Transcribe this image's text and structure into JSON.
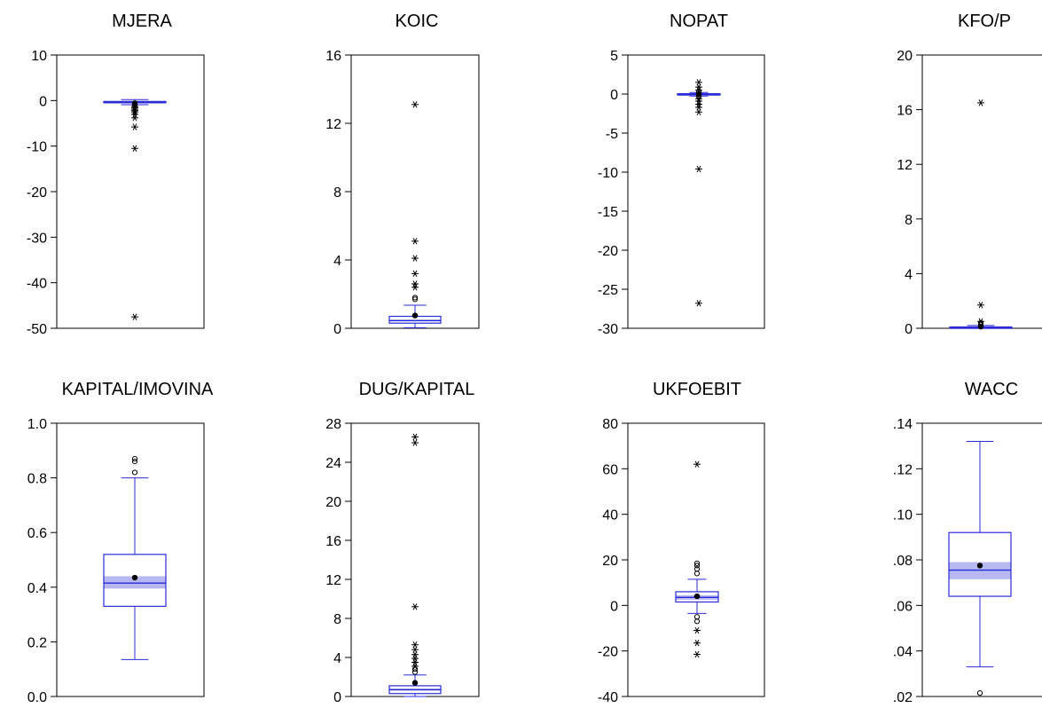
{
  "colors": {
    "box": "#2a2ad6",
    "ci_band": "#b8b8f0",
    "mean": "#000000",
    "frame": "#000000"
  },
  "chart_data": [
    {
      "type": "boxplot",
      "title": "MJERA",
      "ylim": [
        -50,
        10
      ],
      "yticks": [
        10,
        0,
        -10,
        -20,
        -30,
        -40,
        -50
      ],
      "ytick_labels": [
        "10",
        "0",
        "-10",
        "-20",
        "-30",
        "-40",
        "-50"
      ],
      "whisker_low": -0.9,
      "q1": -0.45,
      "median": -0.3,
      "q3": -0.2,
      "whisker_high": 0.2,
      "mean": -0.6,
      "ci": [
        -0.45,
        -0.15
      ],
      "near_outliers": [
        -0.9,
        -1.1
      ],
      "far_outliers": [
        -1.3,
        -1.6,
        -1.9,
        -2.2,
        -2.5,
        -3.0,
        -3.8,
        -5.8,
        -10.5,
        -47.5
      ]
    },
    {
      "type": "boxplot",
      "title": "KOIC",
      "ylim": [
        0,
        16
      ],
      "yticks": [
        16,
        12,
        8,
        4,
        0
      ],
      "ytick_labels": [
        "16",
        "12",
        "8",
        "4",
        "0"
      ],
      "whisker_low": 0.03,
      "q1": 0.3,
      "median": 0.45,
      "q3": 0.7,
      "whisker_high": 1.35,
      "mean": 0.75,
      "ci": [
        0.4,
        0.5
      ],
      "near_outliers": [
        1.7,
        1.8
      ],
      "far_outliers": [
        2.4,
        2.6,
        3.2,
        4.1,
        5.1,
        13.1
      ]
    },
    {
      "type": "boxplot",
      "title": "NOPAT",
      "ylim": [
        -30,
        5
      ],
      "yticks": [
        5,
        0,
        -5,
        -10,
        -15,
        -20,
        -25,
        -30
      ],
      "ytick_labels": [
        "5",
        "0",
        "-5",
        "-10",
        "-15",
        "-20",
        "-25",
        "-30"
      ],
      "whisker_low": -0.25,
      "q1": -0.08,
      "median": -0.02,
      "q3": 0.05,
      "whisker_high": 0.2,
      "mean": 0.0,
      "ci": [
        -0.05,
        0.02
      ],
      "near_outliers": [
        0.25,
        -0.3
      ],
      "far_outliers": [
        1.5,
        0.9,
        0.5,
        -0.6,
        -0.9,
        -1.3,
        -1.7,
        -2.3,
        -9.6,
        -26.8
      ]
    },
    {
      "type": "boxplot",
      "title": "KFO/P",
      "ylim": [
        0,
        20
      ],
      "yticks": [
        20,
        16,
        12,
        8,
        4,
        0
      ],
      "ytick_labels": [
        "20",
        "16",
        "12",
        "8",
        "4",
        "0"
      ],
      "whisker_low": 0.0,
      "q1": 0.02,
      "median": 0.05,
      "q3": 0.1,
      "whisker_high": 0.2,
      "mean": 0.12,
      "ci": [
        0.04,
        0.06
      ],
      "near_outliers": [
        0.3,
        0.4
      ],
      "far_outliers": [
        0.5,
        1.7,
        16.5
      ]
    },
    {
      "type": "boxplot",
      "title": "KAPITAL/IMOVINA",
      "ylim": [
        0,
        1
      ],
      "yticks": [
        1,
        0.8,
        0.6,
        0.4,
        0.2,
        0
      ],
      "ytick_labels": [
        "1.0",
        "0.8",
        "0.6",
        "0.4",
        "0.2",
        "0.0"
      ],
      "whisker_low": 0.135,
      "q1": 0.33,
      "median": 0.415,
      "q3": 0.52,
      "whisker_high": 0.8,
      "mean": 0.435,
      "ci": [
        0.395,
        0.44
      ],
      "near_outliers": [
        0.82,
        0.86,
        0.87
      ],
      "far_outliers": []
    },
    {
      "type": "boxplot",
      "title": "DUG/KAPITAL",
      "ylim": [
        0,
        28
      ],
      "yticks": [
        28,
        24,
        20,
        16,
        12,
        8,
        4,
        0
      ],
      "ytick_labels": [
        "28",
        "24",
        "20",
        "16",
        "12",
        "8",
        "4",
        "0"
      ],
      "whisker_low": 0.0,
      "q1": 0.3,
      "median": 0.7,
      "q3": 1.1,
      "whisker_high": 2.2,
      "mean": 1.4,
      "ci": [
        0.6,
        0.8
      ],
      "near_outliers": [
        2.5,
        2.8
      ],
      "far_outliers": [
        3.1,
        3.5,
        3.9,
        4.3,
        4.8,
        5.3,
        9.2,
        26.0,
        26.6
      ]
    },
    {
      "type": "boxplot",
      "title": "UKFOEBIT",
      "ylim": [
        -40,
        80
      ],
      "yticks": [
        80,
        60,
        40,
        20,
        0,
        -20,
        -40
      ],
      "ytick_labels": [
        "80",
        "60",
        "40",
        "20",
        "0",
        "-20",
        "-40"
      ],
      "whisker_low": -3.5,
      "q1": 1.5,
      "median": 3.5,
      "q3": 6.0,
      "whisker_high": 11.5,
      "mean": 4.0,
      "ci": [
        2.5,
        4.5
      ],
      "near_outliers": [
        14.0,
        16.0,
        17.5,
        18.5,
        -5.0,
        -7.0
      ],
      "far_outliers": [
        -11.0,
        -16.5,
        -21.5,
        62.0
      ]
    },
    {
      "type": "boxplot",
      "title": "WACC",
      "ylim": [
        0.02,
        0.14
      ],
      "yticks": [
        0.14,
        0.12,
        0.1,
        0.08,
        0.06,
        0.04,
        0.02
      ],
      "ytick_labels": [
        ".14",
        ".12",
        ".10",
        ".08",
        ".06",
        ".04",
        ".02"
      ],
      "whisker_low": 0.033,
      "q1": 0.064,
      "median": 0.0755,
      "q3": 0.092,
      "whisker_high": 0.132,
      "mean": 0.0775,
      "ci": [
        0.0715,
        0.079
      ],
      "near_outliers": [
        0.0215
      ],
      "far_outliers": []
    }
  ]
}
